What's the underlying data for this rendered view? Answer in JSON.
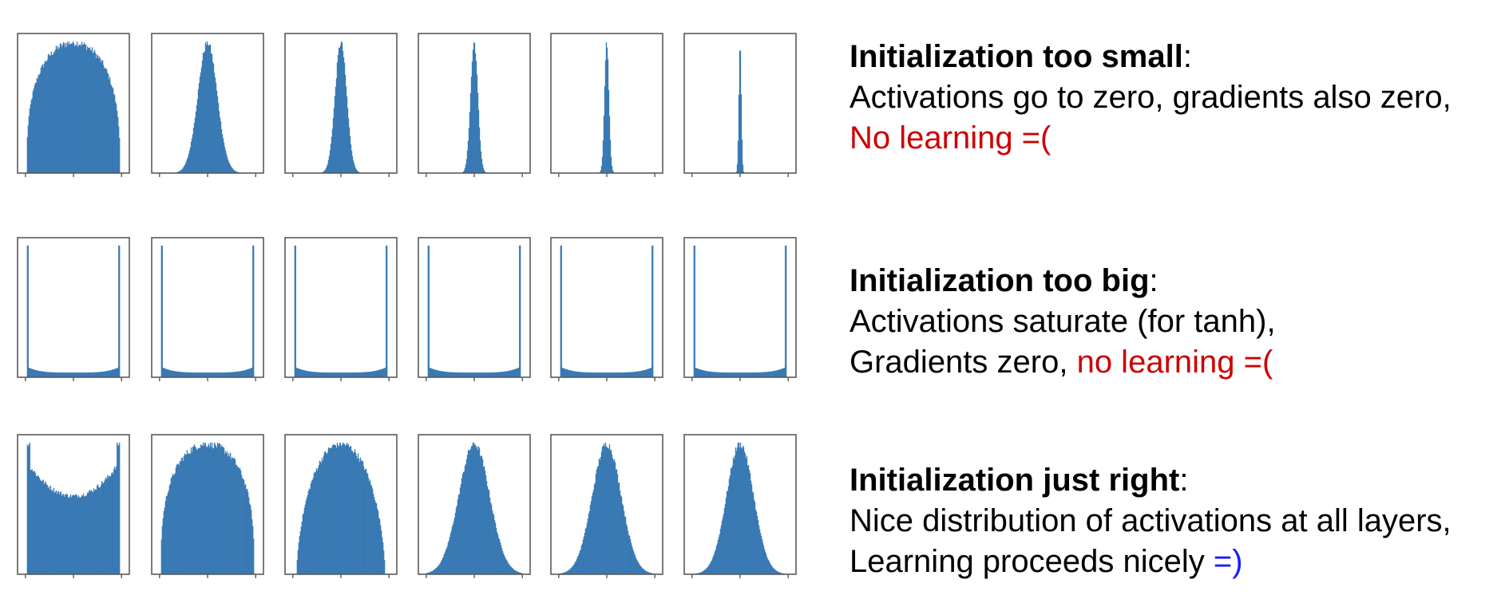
{
  "chart_data": {
    "type": "histogram-grid",
    "rows": [
      {
        "name": "too_small",
        "panels": [
          {
            "shape": "semicircle",
            "sd": 0.55
          },
          {
            "shape": "gaussian",
            "sd": 0.2
          },
          {
            "shape": "gaussian",
            "sd": 0.12
          },
          {
            "shape": "gaussian",
            "sd": 0.075
          },
          {
            "shape": "gaussian",
            "sd": 0.045
          },
          {
            "shape": "gaussian",
            "sd": 0.025
          }
        ]
      },
      {
        "name": "too_big",
        "panels": [
          {
            "shape": "saturated"
          },
          {
            "shape": "saturated"
          },
          {
            "shape": "saturated"
          },
          {
            "shape": "saturated"
          },
          {
            "shape": "saturated"
          },
          {
            "shape": "saturated"
          }
        ]
      },
      {
        "name": "just_right",
        "panels": [
          {
            "shape": "ushape"
          },
          {
            "shape": "semicircle",
            "sd": 0.62
          },
          {
            "shape": "semicircle-soft",
            "sd": 0.55
          },
          {
            "shape": "gaussian",
            "sd": 0.32
          },
          {
            "shape": "gaussian",
            "sd": 0.3
          },
          {
            "shape": "gaussian",
            "sd": 0.28
          }
        ]
      }
    ],
    "bar_color": "#3a7ab5",
    "x_ticks_per_panel": 3
  },
  "annotations": {
    "small": {
      "heading": "Initialization too small",
      "colon": ":",
      "line1": "Activations go to zero, gradients also zero,",
      "line2": "No learning =("
    },
    "big": {
      "heading": "Initialization too big",
      "colon": ":",
      "line1": "Activations saturate (for tanh),",
      "line2_prefix": "Gradients zero, ",
      "line2_red": "no learning =("
    },
    "right": {
      "heading": "Initialization just right",
      "colon": ":",
      "line1": "Nice distribution of activations at all layers,",
      "line2_prefix": "Learning proceeds nicely ",
      "line2_blue": "=)"
    }
  },
  "colors": {
    "red": "#cc0000",
    "blue": "#1a1aff",
    "bar": "#3a7ab5"
  }
}
